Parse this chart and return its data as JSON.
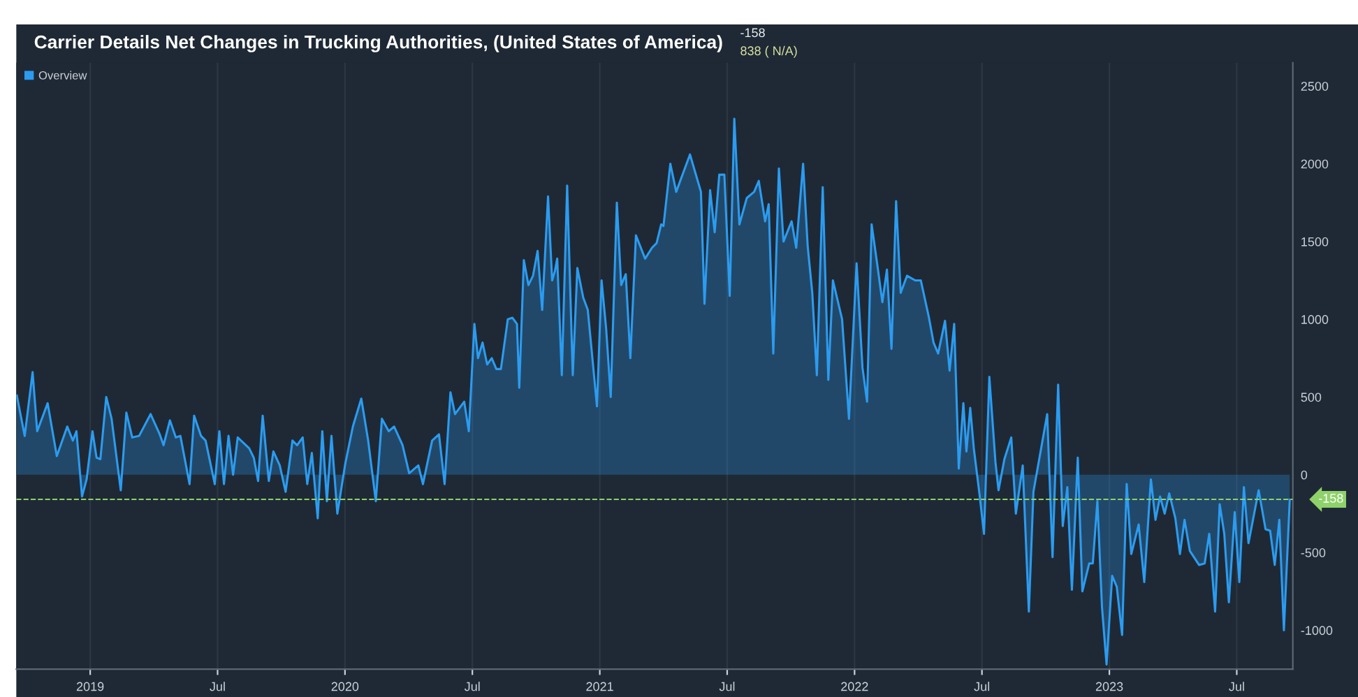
{
  "chart_data": {
    "type": "area",
    "title": "Carrier Details Net Changes in Trucking Authorities, (United States of America)",
    "annotations": [
      "-158",
      "838 ( N/A)"
    ],
    "xlim": [
      2018.71,
      2023.72
    ],
    "xticks": [
      {
        "value": 2019,
        "label": "2019"
      },
      {
        "value": 2019.5,
        "label": "Jul"
      },
      {
        "value": 2020,
        "label": "2020"
      },
      {
        "value": 2020.5,
        "label": "Jul"
      },
      {
        "value": 2021,
        "label": "2021"
      },
      {
        "value": 2021.5,
        "label": "Jul"
      },
      {
        "value": 2022,
        "label": "2022"
      },
      {
        "value": 2022.5,
        "label": "Jul"
      },
      {
        "value": 2023,
        "label": "2023"
      },
      {
        "value": 2023.5,
        "label": "Jul"
      }
    ],
    "ylim": [
      -1250,
      2650
    ],
    "yticks": [
      -1000,
      -500,
      0,
      500,
      1000,
      1500,
      2000,
      2500
    ],
    "grid": "x",
    "legend": "top left",
    "ref_lines": [
      {
        "axis": "y",
        "value": -158,
        "label": "-158",
        "color": "#8fd16a",
        "line_style": "dashed"
      }
    ],
    "series": [
      {
        "name": "Overview",
        "color": "#2b9cf0",
        "x": [
          2018.712,
          2018.743,
          2018.774,
          2018.792,
          2018.833,
          2018.869,
          2018.91,
          2018.932,
          2018.946,
          2018.968,
          2018.986,
          2019.009,
          2019.025,
          2019.04,
          2019.063,
          2019.084,
          2019.12,
          2019.142,
          2019.165,
          2019.192,
          2019.237,
          2019.273,
          2019.288,
          2019.313,
          2019.336,
          2019.354,
          2019.39,
          2019.408,
          2019.435,
          2019.453,
          2019.489,
          2019.507,
          2019.525,
          2019.543,
          2019.561,
          2019.579,
          2019.624,
          2019.642,
          2019.659,
          2019.677,
          2019.701,
          2019.719,
          2019.744,
          2019.767,
          2019.794,
          2019.812,
          2019.834,
          2019.852,
          2019.87,
          2019.893,
          2019.911,
          2019.929,
          2019.947,
          2019.97,
          2020.001,
          2020.031,
          2020.064,
          2020.091,
          2020.121,
          2020.145,
          2020.172,
          2020.193,
          2020.226,
          2020.252,
          2020.288,
          2020.306,
          2020.342,
          2020.369,
          2020.391,
          2020.414,
          2020.432,
          2020.468,
          2020.486,
          2020.508,
          2020.522,
          2020.54,
          2020.558,
          2020.576,
          2020.594,
          2020.612,
          2020.639,
          2020.657,
          2020.675,
          2020.684,
          2020.702,
          2020.72,
          2020.738,
          2020.756,
          2020.774,
          2020.797,
          2020.813,
          2020.824,
          2020.833,
          2020.851,
          2020.872,
          2020.894,
          2020.912,
          2020.935,
          2020.953,
          2020.989,
          2021.007,
          2021.025,
          2021.043,
          2021.067,
          2021.084,
          2021.102,
          2021.12,
          2021.142,
          2021.178,
          2021.205,
          2021.223,
          2021.241,
          2021.25,
          2021.277,
          2021.3,
          2021.354,
          2021.397,
          2021.411,
          2021.433,
          2021.451,
          2021.469,
          2021.489,
          2021.51,
          2021.528,
          2021.548,
          2021.577,
          2021.606,
          2021.624,
          2021.649,
          2021.663,
          2021.681,
          2021.703,
          2021.721,
          2021.753,
          2021.771,
          2021.798,
          2021.816,
          2021.834,
          2021.852,
          2021.875,
          2021.897,
          2021.915,
          2021.951,
          2021.978,
          2022.008,
          2022.031,
          2022.049,
          2022.067,
          2022.091,
          2022.109,
          2022.127,
          2022.145,
          2022.163,
          2022.181,
          2022.206,
          2022.238,
          2022.26,
          2022.292,
          2022.31,
          2022.328,
          2022.355,
          2022.373,
          2022.391,
          2022.409,
          2022.427,
          2022.439,
          2022.454,
          2022.468,
          2022.49,
          2022.508,
          2022.529,
          2022.553,
          2022.565,
          2022.588,
          2022.615,
          2022.633,
          2022.66,
          2022.684,
          2022.702,
          2022.756,
          2022.777,
          2022.799,
          2022.817,
          2022.835,
          2022.853,
          2022.876,
          2022.894,
          2022.921,
          2022.935,
          2022.953,
          2022.971,
          2022.989,
          2023.011,
          2023.029,
          2023.05,
          2023.068,
          2023.086,
          2023.115,
          2023.137,
          2023.163,
          2023.181,
          2023.199,
          2023.217,
          2023.235,
          2023.259,
          2023.277,
          2023.295,
          2023.316,
          2023.352,
          2023.374,
          2023.392,
          2023.415,
          2023.433,
          2023.451,
          2023.469,
          2023.492,
          2023.51,
          2023.528,
          2023.546,
          2023.586,
          2023.613,
          2023.631,
          2023.649,
          2023.667,
          2023.685,
          2023.708
        ],
        "values": [
          510,
          250,
          660,
          280,
          460,
          120,
          310,
          220,
          280,
          -140,
          -30,
          280,
          110,
          100,
          500,
          360,
          -100,
          400,
          240,
          250,
          390,
          260,
          190,
          350,
          240,
          250,
          -60,
          380,
          250,
          220,
          -60,
          280,
          -60,
          250,
          0,
          240,
          170,
          110,
          -40,
          380,
          -40,
          150,
          60,
          -110,
          220,
          190,
          240,
          -60,
          140,
          -280,
          280,
          -170,
          250,
          -250,
          70,
          310,
          490,
          220,
          -170,
          360,
          280,
          310,
          190,
          10,
          60,
          -60,
          220,
          260,
          -60,
          530,
          390,
          470,
          280,
          970,
          750,
          850,
          710,
          750,
          680,
          680,
          1000,
          1010,
          970,
          560,
          1380,
          1220,
          1280,
          1440,
          1060,
          1790,
          1250,
          1310,
          1390,
          640,
          1860,
          640,
          1330,
          1140,
          1060,
          440,
          1250,
          940,
          500,
          1750,
          1220,
          1290,
          750,
          1540,
          1390,
          1460,
          1490,
          1610,
          1600,
          2000,
          1820,
          2060,
          1820,
          1100,
          1830,
          1560,
          1930,
          1930,
          1150,
          2290,
          1610,
          1780,
          1820,
          1890,
          1630,
          1740,
          780,
          1970,
          1500,
          1630,
          1460,
          2000,
          1470,
          1170,
          640,
          1850,
          610,
          1250,
          1000,
          360,
          1360,
          690,
          470,
          1610,
          1330,
          1110,
          1320,
          810,
          1760,
          1170,
          1280,
          1250,
          1250,
          1010,
          850,
          780,
          990,
          670,
          970,
          40,
          460,
          150,
          430,
          170,
          -120,
          -380,
          630,
          80,
          -100,
          100,
          240,
          -250,
          60,
          -880,
          -110,
          390,
          -530,
          580,
          -330,
          -80,
          -740,
          110,
          -750,
          -570,
          -570,
          -170,
          -850,
          -1220,
          -650,
          -720,
          -1030,
          -60,
          -510,
          -320,
          -690,
          -30,
          -290,
          -140,
          -250,
          -120,
          -280,
          -510,
          -290,
          -490,
          -580,
          -570,
          -380,
          -880,
          -190,
          -380,
          -820,
          -240,
          -690,
          -80,
          -440,
          -100,
          -350,
          -360,
          -580,
          -290,
          -1000,
          -160
        ]
      }
    ]
  }
}
